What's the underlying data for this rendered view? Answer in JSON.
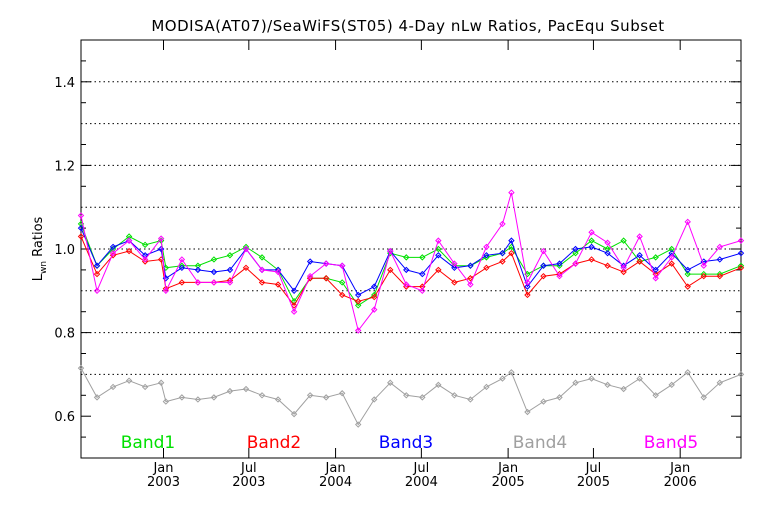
{
  "chart_data": {
    "type": "line",
    "title": "MODISA(AT07)/SeaWiFS(ST05) 4-Day nLw Ratios, PacEqu Subset",
    "ylabel_main": "L",
    "ylabel_sub": "wn",
    "ylabel_rest": " Ratios",
    "ylim": [
      0.5,
      1.5
    ],
    "yticks": [
      0.6,
      0.8,
      1.0,
      1.2,
      1.4
    ],
    "ytick_labels": [
      "0.6",
      "0.8",
      "1.0",
      "1.2",
      "1.4"
    ],
    "ygrid": [
      0.7,
      0.8,
      0.9,
      1.0,
      1.1,
      1.2,
      1.3,
      1.4
    ],
    "xlim": [
      "2002-07-10",
      "2006-05-10"
    ],
    "xticks": [
      {
        "date": "2003-01-01",
        "month": "Jan",
        "year": "2003"
      },
      {
        "date": "2003-07-01",
        "month": "Jul",
        "year": "2003"
      },
      {
        "date": "2004-01-01",
        "month": "Jan",
        "year": "2004"
      },
      {
        "date": "2004-07-01",
        "month": "Jul",
        "year": "2004"
      },
      {
        "date": "2005-01-01",
        "month": "Jan",
        "year": "2005"
      },
      {
        "date": "2005-07-01",
        "month": "Jul",
        "year": "2005"
      },
      {
        "date": "2006-01-01",
        "month": "Jan",
        "year": "2006"
      }
    ],
    "x": [
      "2002-07-10",
      "2002-08-13",
      "2002-09-16",
      "2002-10-20",
      "2002-11-23",
      "2002-12-27",
      "2003-01-06",
      "2003-02-09",
      "2003-03-15",
      "2003-04-18",
      "2003-05-22",
      "2003-06-25",
      "2003-07-29",
      "2003-09-01",
      "2003-10-05",
      "2003-11-08",
      "2003-12-12",
      "2004-01-15",
      "2004-02-18",
      "2004-03-23",
      "2004-04-26",
      "2004-05-30",
      "2004-07-03",
      "2004-08-06",
      "2004-09-09",
      "2004-10-13",
      "2004-11-16",
      "2004-12-20",
      "2005-01-08",
      "2005-02-11",
      "2005-03-17",
      "2005-04-20",
      "2005-05-24",
      "2005-06-27",
      "2005-07-31",
      "2005-09-03",
      "2005-10-07",
      "2005-11-10",
      "2005-12-14",
      "2006-01-17",
      "2006-02-20",
      "2006-03-26",
      "2006-05-10"
    ],
    "series": [
      {
        "name": "Band1",
        "color": "#00e000",
        "values": [
          1.06,
          0.96,
          1.0,
          1.03,
          1.01,
          1.02,
          0.955,
          0.96,
          0.96,
          0.975,
          0.985,
          1.005,
          0.98,
          0.95,
          0.875,
          0.93,
          0.93,
          0.92,
          0.865,
          0.89,
          0.99,
          0.98,
          0.98,
          1.0,
          0.96,
          0.96,
          0.98,
          0.99,
          1.005,
          0.94,
          0.96,
          0.96,
          0.99,
          1.02,
          1.0,
          1.02,
          0.97,
          0.98,
          1.0,
          0.94,
          0.94,
          0.94,
          0.96
        ]
      },
      {
        "name": "Band2",
        "color": "#ff0000",
        "values": [
          1.03,
          0.94,
          0.985,
          0.995,
          0.97,
          0.975,
          0.905,
          0.92,
          0.92,
          0.92,
          0.925,
          0.955,
          0.92,
          0.915,
          0.865,
          0.93,
          0.93,
          0.89,
          0.875,
          0.885,
          0.95,
          0.91,
          0.91,
          0.95,
          0.92,
          0.93,
          0.955,
          0.97,
          0.99,
          0.89,
          0.935,
          0.94,
          0.965,
          0.975,
          0.96,
          0.945,
          0.97,
          0.94,
          0.965,
          0.91,
          0.935,
          0.935,
          0.955
        ]
      },
      {
        "name": "Band3",
        "color": "#0000ff",
        "values": [
          1.05,
          0.96,
          1.005,
          1.02,
          0.985,
          1.0,
          0.93,
          0.955,
          0.95,
          0.945,
          0.95,
          1.0,
          0.95,
          0.95,
          0.9,
          0.97,
          0.965,
          0.96,
          0.89,
          0.91,
          0.995,
          0.95,
          0.94,
          0.985,
          0.955,
          0.96,
          0.985,
          0.99,
          1.02,
          0.91,
          0.96,
          0.965,
          1.0,
          1.005,
          0.99,
          0.96,
          0.985,
          0.95,
          0.99,
          0.95,
          0.97,
          0.975,
          0.99
        ]
      },
      {
        "name": "Band4",
        "color": "#a0a0a0",
        "values": [
          0.715,
          0.645,
          0.67,
          0.685,
          0.67,
          0.68,
          0.635,
          0.645,
          0.64,
          0.645,
          0.66,
          0.665,
          0.65,
          0.64,
          0.605,
          0.65,
          0.645,
          0.655,
          0.58,
          0.64,
          0.68,
          0.65,
          0.645,
          0.675,
          0.65,
          0.64,
          0.67,
          0.69,
          0.705,
          0.61,
          0.635,
          0.645,
          0.68,
          0.69,
          0.675,
          0.665,
          0.69,
          0.65,
          0.675,
          0.705,
          0.645,
          0.68,
          0.7
        ]
      },
      {
        "name": "Band5",
        "color": "#ff00ff",
        "values": [
          1.08,
          0.9,
          0.99,
          1.02,
          0.975,
          1.025,
          0.9,
          0.975,
          0.92,
          0.92,
          0.92,
          1.0,
          0.95,
          0.945,
          0.85,
          0.935,
          0.965,
          0.96,
          0.805,
          0.855,
          0.995,
          0.915,
          0.9,
          1.02,
          0.965,
          0.915,
          1.005,
          1.06,
          1.135,
          0.92,
          0.995,
          0.935,
          0.965,
          1.04,
          1.015,
          0.955,
          1.03,
          0.93,
          0.98,
          1.065,
          0.96,
          1.005,
          1.02
        ]
      }
    ],
    "legend_position": "bottom"
  }
}
